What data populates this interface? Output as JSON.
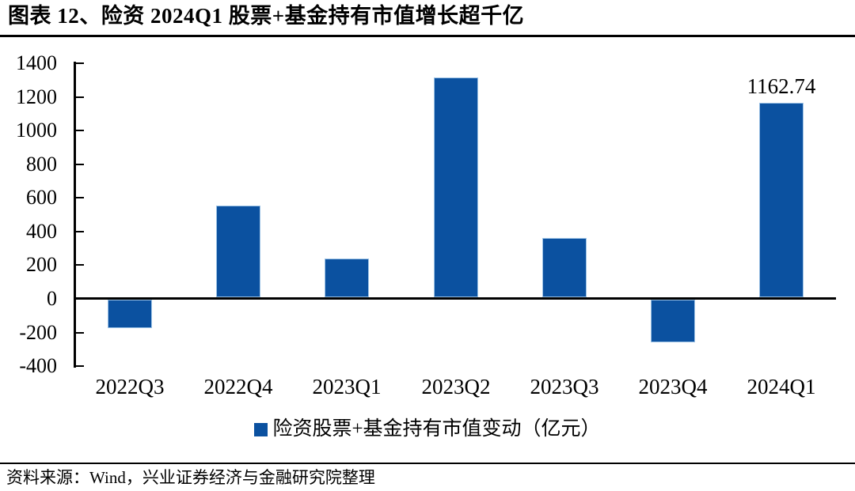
{
  "title": "图表 12、险资 2024Q1 股票+基金持有市值增长超千亿",
  "colors": {
    "bar_fill": "#0B51A0",
    "bar_border": "#9DC3E6",
    "axis": "#000000",
    "text": "#000000"
  },
  "legend": {
    "marker": "blue-square",
    "label": "险资股票+基金持有市值变动（亿元）"
  },
  "source": {
    "label": "资料来源：Wind，兴业证券经济与金融研究院整理"
  },
  "chart_data": {
    "type": "bar",
    "title": "图表 12、险资 2024Q1 股票+基金持有市值增长超千亿",
    "categories": [
      "2022Q3",
      "2022Q4",
      "2023Q1",
      "2023Q2",
      "2023Q3",
      "2023Q4",
      "2024Q1"
    ],
    "series": [
      {
        "name": "险资股票+基金持有市值变动（亿元）",
        "values": [
          -175,
          555,
          240,
          1315,
          360,
          -260,
          1162.74
        ]
      }
    ],
    "bar_labels": [
      null,
      null,
      null,
      null,
      null,
      null,
      "1162.74"
    ],
    "xlabel": "",
    "ylabel": "",
    "unit": "亿元",
    "ylim": [
      -400,
      1400
    ],
    "ytick_step": 200,
    "yticks": [
      1400,
      1200,
      1000,
      800,
      600,
      400,
      200,
      0,
      -200,
      -400
    ],
    "grid": false,
    "legend_position": "bottom"
  }
}
